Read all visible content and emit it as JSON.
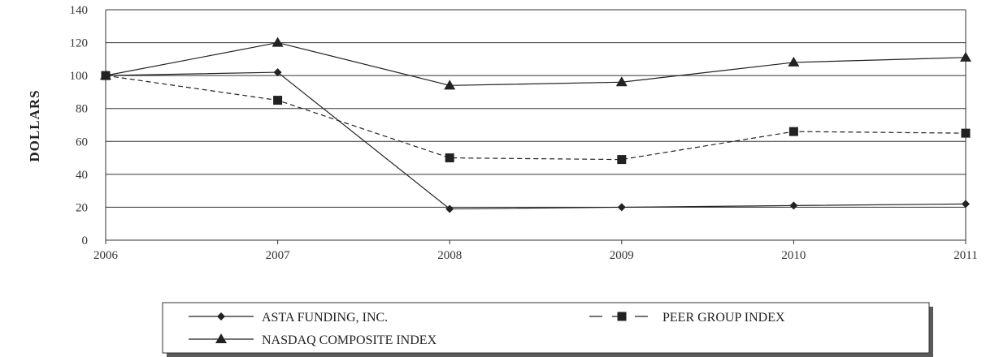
{
  "chart_data": {
    "type": "line",
    "title": "",
    "xlabel": "",
    "ylabel": "DOLLARS",
    "x": [
      "2006",
      "2007",
      "2008",
      "2009",
      "2010",
      "2011"
    ],
    "ylim": [
      0,
      140
    ],
    "yticks": [
      0,
      20,
      40,
      60,
      80,
      100,
      120,
      140
    ],
    "grid": true,
    "legend_position": "bottom",
    "series": [
      {
        "name": "ASTA FUNDING, INC.",
        "values": [
          100,
          102,
          19,
          20,
          21,
          22
        ],
        "marker": "diamond",
        "line_style": "solid",
        "color": "#222222"
      },
      {
        "name": "PEER GROUP INDEX",
        "values": [
          100,
          85,
          50,
          49,
          66,
          65
        ],
        "marker": "square",
        "line_style": "dashed",
        "color": "#222222"
      },
      {
        "name": "NASDAQ COMPOSITE INDEX",
        "values": [
          100,
          120,
          94,
          96,
          108,
          111
        ],
        "marker": "triangle",
        "line_style": "solid",
        "color": "#222222"
      }
    ]
  }
}
